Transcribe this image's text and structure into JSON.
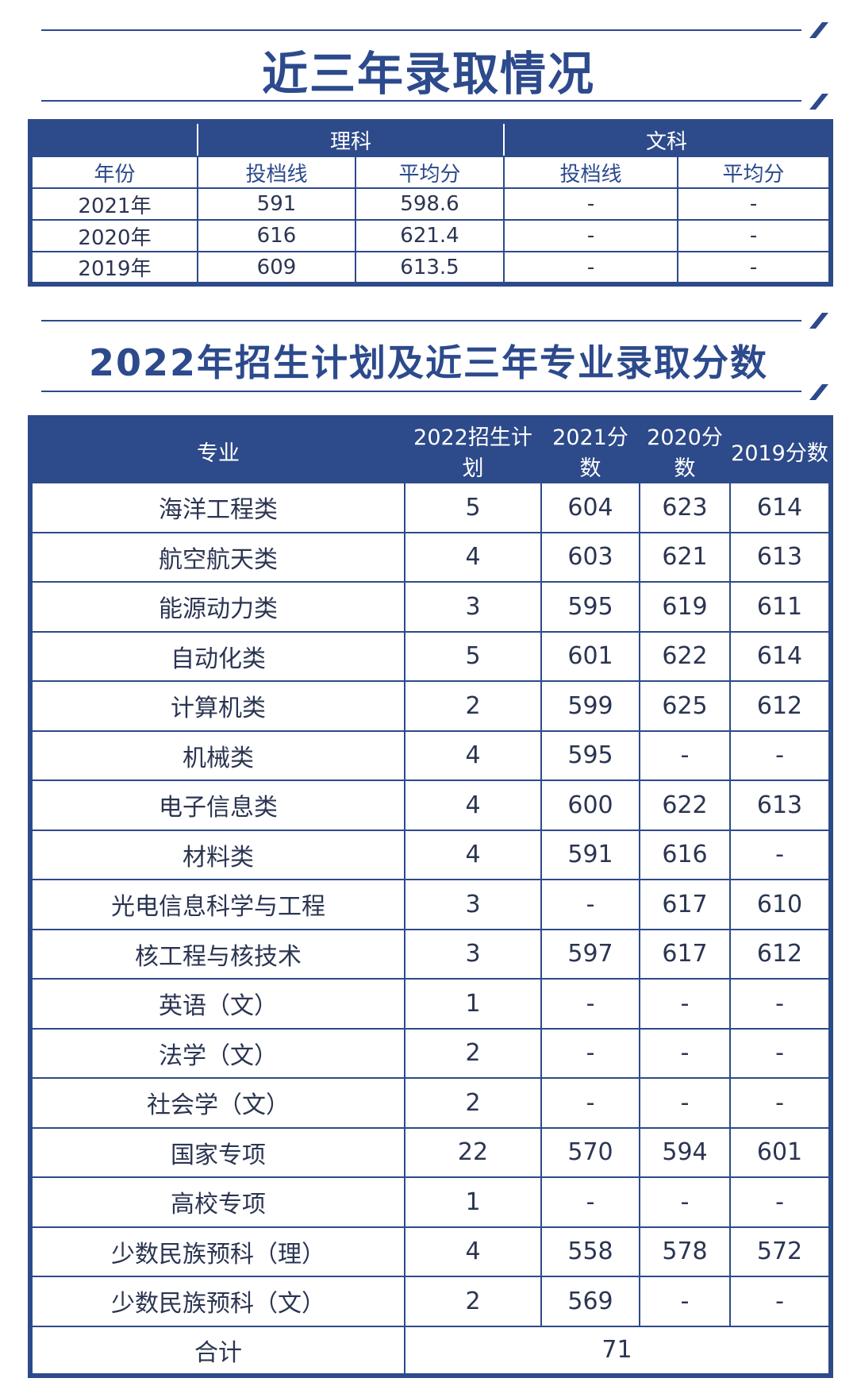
{
  "section1": {
    "title": "近三年录取情况",
    "table": {
      "groups": [
        "理科",
        "文科"
      ],
      "header": [
        "年份",
        "投档线",
        "平均分",
        "投档线",
        "平均分"
      ],
      "rows": [
        [
          "2021年",
          "591",
          "598.6",
          "-",
          "-"
        ],
        [
          "2020年",
          "616",
          "621.4",
          "-",
          "-"
        ],
        [
          "2019年",
          "609",
          "613.5",
          "-",
          "-"
        ]
      ]
    }
  },
  "section2": {
    "title": "2022年招生计划及近三年专业录取分数",
    "table": {
      "header": [
        "专业",
        "2022招生计划",
        "2021分数",
        "2020分数",
        "2019分数"
      ],
      "rows": [
        [
          "海洋工程类",
          "5",
          "604",
          "623",
          "614"
        ],
        [
          "航空航天类",
          "4",
          "603",
          "621",
          "613"
        ],
        [
          "能源动力类",
          "3",
          "595",
          "619",
          "611"
        ],
        [
          "自动化类",
          "5",
          "601",
          "622",
          "614"
        ],
        [
          "计算机类",
          "2",
          "599",
          "625",
          "612"
        ],
        [
          "机械类",
          "4",
          "595",
          "-",
          "-"
        ],
        [
          "电子信息类",
          "4",
          "600",
          "622",
          "613"
        ],
        [
          "材料类",
          "4",
          "591",
          "616",
          "-"
        ],
        [
          "光电信息科学与工程",
          "3",
          "-",
          "617",
          "610"
        ],
        [
          "核工程与核技术",
          "3",
          "597",
          "617",
          "612"
        ],
        [
          "英语（文）",
          "1",
          "-",
          "-",
          "-"
        ],
        [
          "法学（文）",
          "2",
          "-",
          "-",
          "-"
        ],
        [
          "社会学（文）",
          "2",
          "-",
          "-",
          "-"
        ],
        [
          "国家专项",
          "22",
          "570",
          "594",
          "601"
        ],
        [
          "高校专项",
          "1",
          "-",
          "-",
          "-"
        ],
        [
          "少数民族预科（理）",
          "4",
          "558",
          "578",
          "572"
        ],
        [
          "少数民族预科（文）",
          "2",
          "569",
          "-",
          "-"
        ]
      ],
      "total": {
        "label": "合计",
        "value": "71"
      }
    }
  }
}
